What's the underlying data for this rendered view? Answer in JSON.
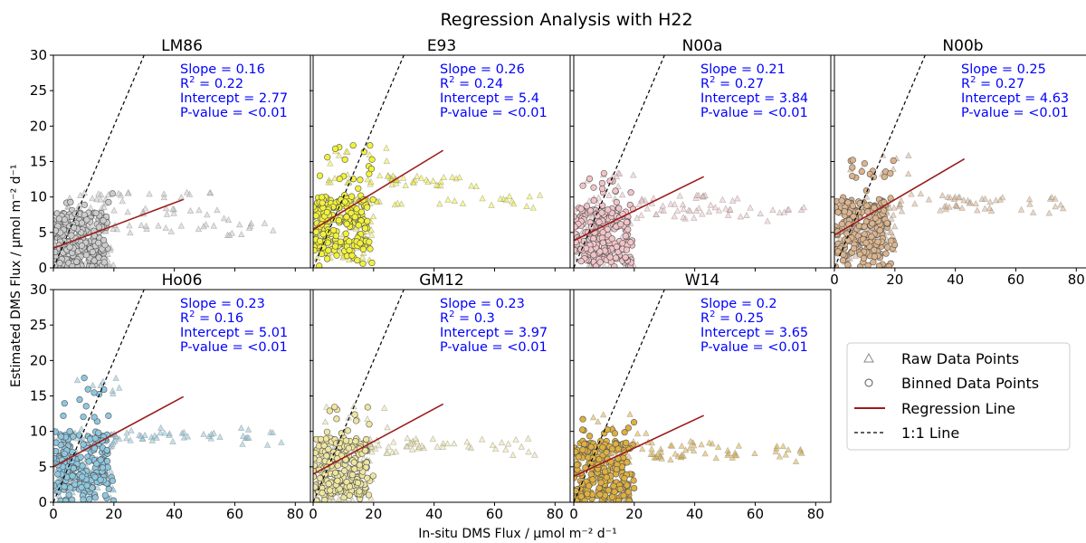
{
  "chart_data": {
    "type": "scatter",
    "title": "Regression Analysis with H22",
    "xlabel": "In-situ DMS Flux / μmol m⁻² d⁻¹",
    "ylabel": "Estimated DMS Flux / μmol m⁻² d⁻¹",
    "xlim": [
      0,
      85
    ],
    "ylim": [
      0,
      30
    ],
    "xticks": [
      0,
      20,
      40,
      60,
      80
    ],
    "yticks": [
      0,
      5,
      10,
      15,
      20,
      25,
      30
    ],
    "legend": {
      "placement": "lower-right",
      "entries": [
        "Raw Data Points",
        "Binned Data Points",
        "Regression Line",
        "1:1 Line"
      ]
    },
    "colors": {
      "stats_text": "#0000ff",
      "regression_line": "#9b1c1c",
      "one_to_one_line": "#000000"
    },
    "panels": [
      {
        "name": "LM86",
        "color": "#cccccc",
        "slope": 0.16,
        "r2": 0.22,
        "intercept": 2.77,
        "pvalue": "<0.01",
        "slope_label": "Slope = 0.16",
        "r2_value": "= 0.22",
        "intercept_label": "Intercept = 2.77",
        "pvalue_label": "P-value = <0.01",
        "binned_max_y": 10.5,
        "raw_levels": [
          5.5,
          8,
          10
        ],
        "line_x": [
          0,
          43
        ]
      },
      {
        "name": "E93",
        "color": "#f2f23a",
        "slope": 0.26,
        "r2": 0.24,
        "intercept": 5.4,
        "pvalue": "<0.01",
        "slope_label": "Slope = 0.26",
        "r2_value": "= 0.24",
        "intercept_label": "Intercept = 5.4",
        "pvalue_label": "P-value = <0.01",
        "binned_max_y": 17.5,
        "raw_levels": [
          9,
          12,
          12.5
        ],
        "line_x": [
          0,
          43
        ]
      },
      {
        "name": "N00a",
        "color": "#f2c4c8",
        "slope": 0.21,
        "r2": 0.27,
        "intercept": 3.84,
        "pvalue": "<0.01",
        "slope_label": "Slope = 0.21",
        "r2_value": "= 0.27",
        "intercept_label": "Intercept = 3.84",
        "pvalue_label": "P-value = <0.01",
        "binned_max_y": 14,
        "raw_levels": [
          7.5,
          8.5,
          10
        ],
        "line_x": [
          0,
          43
        ]
      },
      {
        "name": "N00b",
        "color": "#dcb48c",
        "slope": 0.25,
        "r2": 0.27,
        "intercept": 4.63,
        "pvalue": "<0.01",
        "slope_label": "Slope = 0.25",
        "r2_value": "= 0.27",
        "intercept_label": "Intercept = 4.63",
        "pvalue_label": "P-value = <0.01",
        "binned_max_y": 16,
        "raw_levels": [
          8.5,
          9,
          10
        ],
        "line_x": [
          0,
          43
        ]
      },
      {
        "name": "Ho06",
        "color": "#8ec8e0",
        "slope": 0.23,
        "r2": 0.16,
        "intercept": 5.01,
        "pvalue": "<0.01",
        "slope_label": "Slope = 0.23",
        "r2_value": "= 0.16",
        "intercept_label": "Intercept = 5.01",
        "pvalue_label": "P-value = <0.01",
        "binned_max_y": 18,
        "raw_levels": [
          9,
          9.5,
          10
        ],
        "line_x": [
          0,
          43
        ]
      },
      {
        "name": "GM12",
        "color": "#efe6a0",
        "slope": 0.23,
        "r2": 0.3,
        "intercept": 3.97,
        "pvalue": "<0.01",
        "slope_label": "Slope = 0.23",
        "r2_value": "= 0.3",
        "intercept_label": "Intercept = 3.97",
        "pvalue_label": "P-value = <0.01",
        "binned_max_y": 13.5,
        "raw_levels": [
          7.5,
          8,
          8.5
        ],
        "line_x": [
          0,
          43
        ]
      },
      {
        "name": "W14",
        "color": "#deb040",
        "slope": 0.2,
        "r2": 0.25,
        "intercept": 3.65,
        "pvalue": "<0.01",
        "slope_label": "Slope = 0.2",
        "r2_value": "= 0.25",
        "intercept_label": "Intercept = 3.65",
        "pvalue_label": "P-value = <0.01",
        "binned_max_y": 12.5,
        "raw_levels": [
          6.5,
          7,
          8
        ],
        "line_x": [
          0,
          43
        ]
      }
    ]
  }
}
